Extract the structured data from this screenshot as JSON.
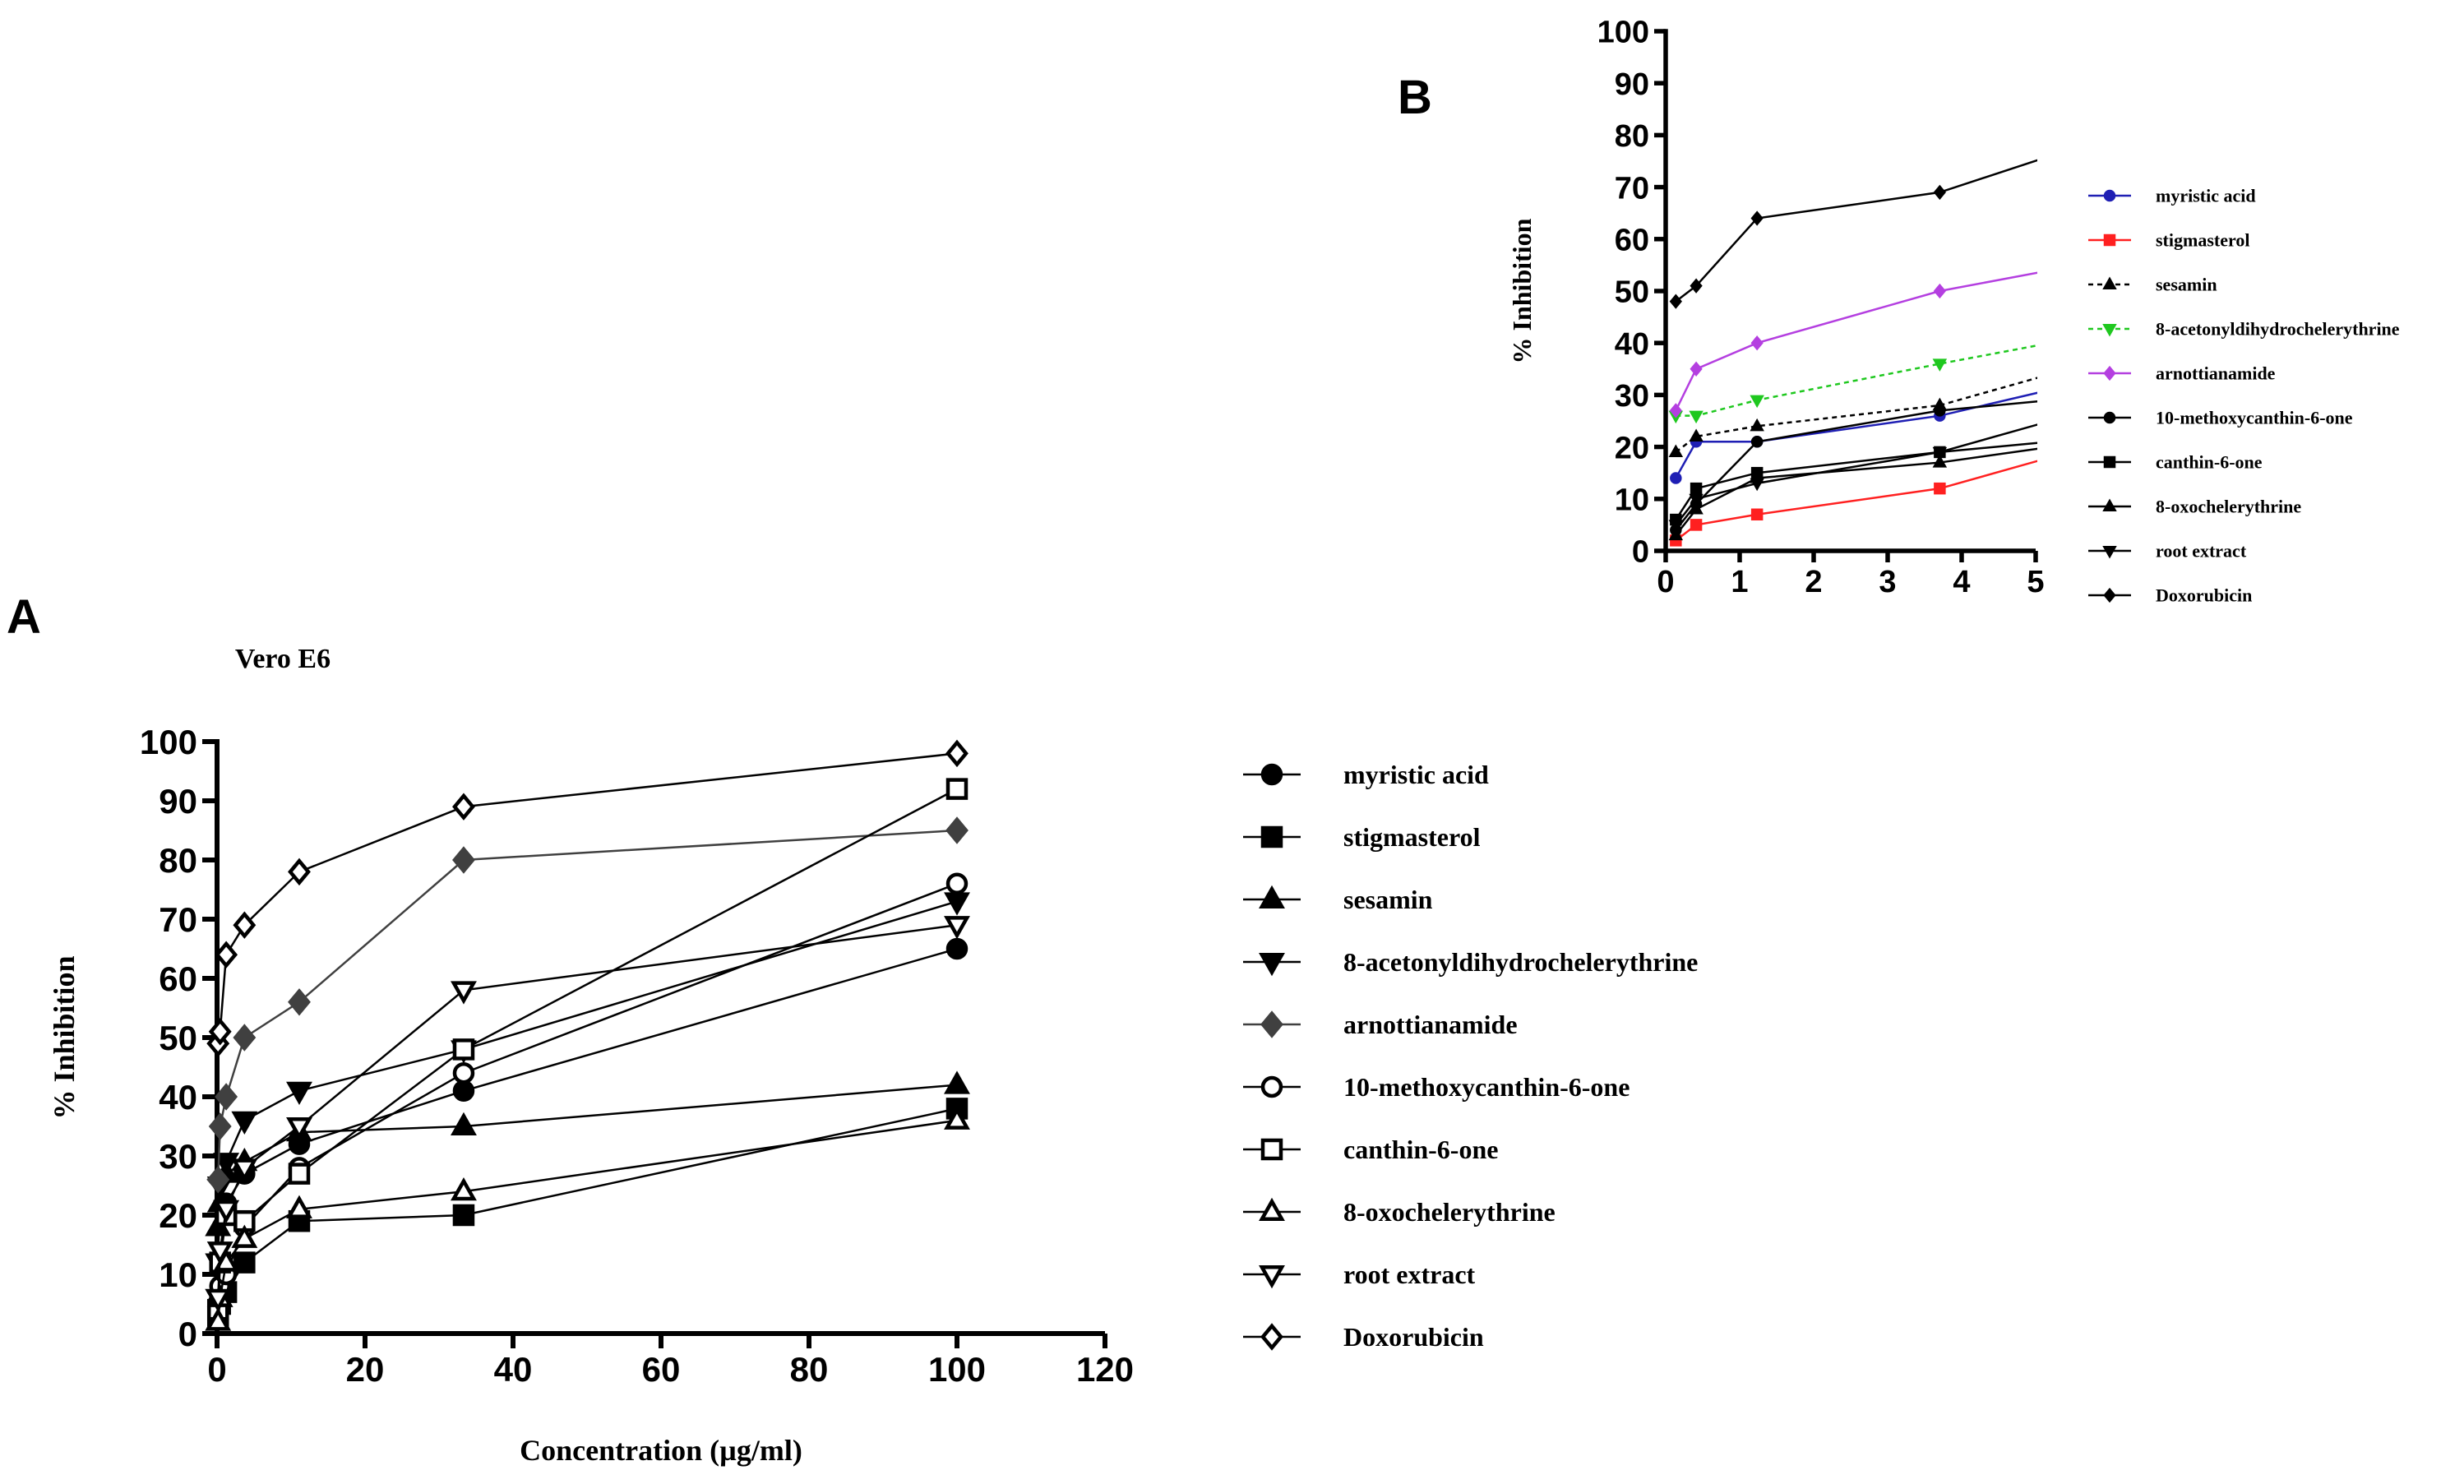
{
  "chart_data": [
    {
      "panel_label": "A",
      "type": "line",
      "title": "Vero E6",
      "xlabel": "Concentration (µg/ml)",
      "ylabel": "% Inhibition",
      "xlim": [
        0,
        120
      ],
      "ylim": [
        0,
        100
      ],
      "xticks": [
        0,
        20,
        40,
        60,
        80,
        100,
        120
      ],
      "yticks": [
        0,
        10,
        20,
        30,
        40,
        50,
        60,
        70,
        80,
        90,
        100
      ],
      "x": [
        0.137,
        0.412,
        1.235,
        3.704,
        11.11,
        33.33,
        100
      ],
      "legend_position": "right",
      "series": [
        {
          "name": "myristic acid",
          "marker": "circle-filled",
          "color": "#000000",
          "values": [
            5,
            12,
            22,
            27,
            32,
            41,
            65
          ]
        },
        {
          "name": "stigmasterol",
          "marker": "square-filled",
          "color": "#000000",
          "values": [
            3,
            5,
            7,
            12,
            19,
            20,
            38
          ]
        },
        {
          "name": "sesamin",
          "marker": "triangle-up-filled",
          "color": "#000000",
          "values": [
            18,
            22,
            27,
            29,
            34,
            35,
            42
          ]
        },
        {
          "name": "8-acetonyldihydrochelerythrine",
          "marker": "triangle-down-filled",
          "color": "#000000",
          "values": [
            12,
            25,
            29,
            36,
            41,
            48,
            73
          ]
        },
        {
          "name": "arnottianamide",
          "marker": "diamond-filled",
          "color": "#404040",
          "values": [
            26,
            35,
            40,
            50,
            56,
            80,
            85
          ]
        },
        {
          "name": "10-methoxycanthin-6-one",
          "marker": "circle-open",
          "color": "#000000",
          "values": [
            5,
            8,
            10,
            18,
            28,
            44,
            76
          ]
        },
        {
          "name": "canthin-6-one",
          "marker": "square-open",
          "color": "#000000",
          "values": [
            4,
            12,
            20,
            19,
            27,
            48,
            92
          ]
        },
        {
          "name": "8-oxochelerythrine",
          "marker": "triangle-up-open",
          "color": "#000000",
          "values": [
            2,
            6,
            12,
            16,
            21,
            24,
            36
          ]
        },
        {
          "name": "root extract",
          "marker": "triangle-down-open",
          "color": "#000000",
          "values": [
            6,
            14,
            21,
            28,
            35,
            58,
            69
          ]
        },
        {
          "name": "Doxorubicin",
          "marker": "diamond-open",
          "color": "#000000",
          "values": [
            49,
            51,
            64,
            69,
            78,
            89,
            98
          ]
        }
      ]
    },
    {
      "panel_label": "B",
      "type": "line",
      "title": "",
      "xlabel": "",
      "ylabel": "% Inhibition",
      "xlim": [
        0,
        5
      ],
      "ylim": [
        0,
        100
      ],
      "xticks": [
        0,
        1,
        2,
        3,
        4,
        5
      ],
      "yticks": [
        0,
        10,
        20,
        30,
        40,
        50,
        60,
        70,
        80,
        90,
        100
      ],
      "x": [
        0.137,
        0.412,
        1.235,
        3.704,
        5.2
      ],
      "legend_position": "right",
      "series": [
        {
          "name": "myristic acid",
          "marker": "circle-filled",
          "color": "#1f1fb4",
          "dash": "",
          "values": [
            14,
            21,
            21,
            26,
            31
          ]
        },
        {
          "name": "stigmasterol",
          "marker": "square-filled",
          "color": "#ff2020",
          "dash": "",
          "values": [
            2,
            5,
            7,
            12,
            18
          ]
        },
        {
          "name": "sesamin",
          "marker": "triangle-up-filled",
          "color": "#000000",
          "dash": "6,5",
          "values": [
            19,
            22,
            24,
            28,
            34
          ]
        },
        {
          "name": "8-acetonyldihydrochelerythrine",
          "marker": "triangle-down-filled",
          "color": "#1fc81f",
          "dash": "6,5",
          "values": [
            26,
            26,
            29,
            36,
            40
          ]
        },
        {
          "name": "arnottianamide",
          "marker": "diamond-filled",
          "color": "#b43fe0",
          "dash": "",
          "values": [
            27,
            35,
            40,
            50,
            54
          ]
        },
        {
          "name": "10-methoxycanthin-6-one",
          "marker": "circle-filled",
          "color": "#000000",
          "dash": "",
          "values": [
            4,
            9,
            21,
            27,
            29
          ]
        },
        {
          "name": "canthin-6-one",
          "marker": "square-filled",
          "color": "#000000",
          "dash": "",
          "values": [
            6,
            12,
            15,
            19,
            21
          ]
        },
        {
          "name": "8-oxochelerythrine",
          "marker": "triangle-up-filled",
          "color": "#000000",
          "dash": "",
          "values": [
            3,
            8,
            14,
            17,
            20
          ]
        },
        {
          "name": "root extract",
          "marker": "triangle-down-filled",
          "color": "#000000",
          "dash": "",
          "values": [
            5,
            10,
            13,
            19,
            25
          ]
        },
        {
          "name": "Doxorubicin",
          "marker": "diamond-filled",
          "color": "#000000",
          "dash": "",
          "values": [
            48,
            51,
            64,
            69,
            76
          ]
        }
      ]
    }
  ]
}
